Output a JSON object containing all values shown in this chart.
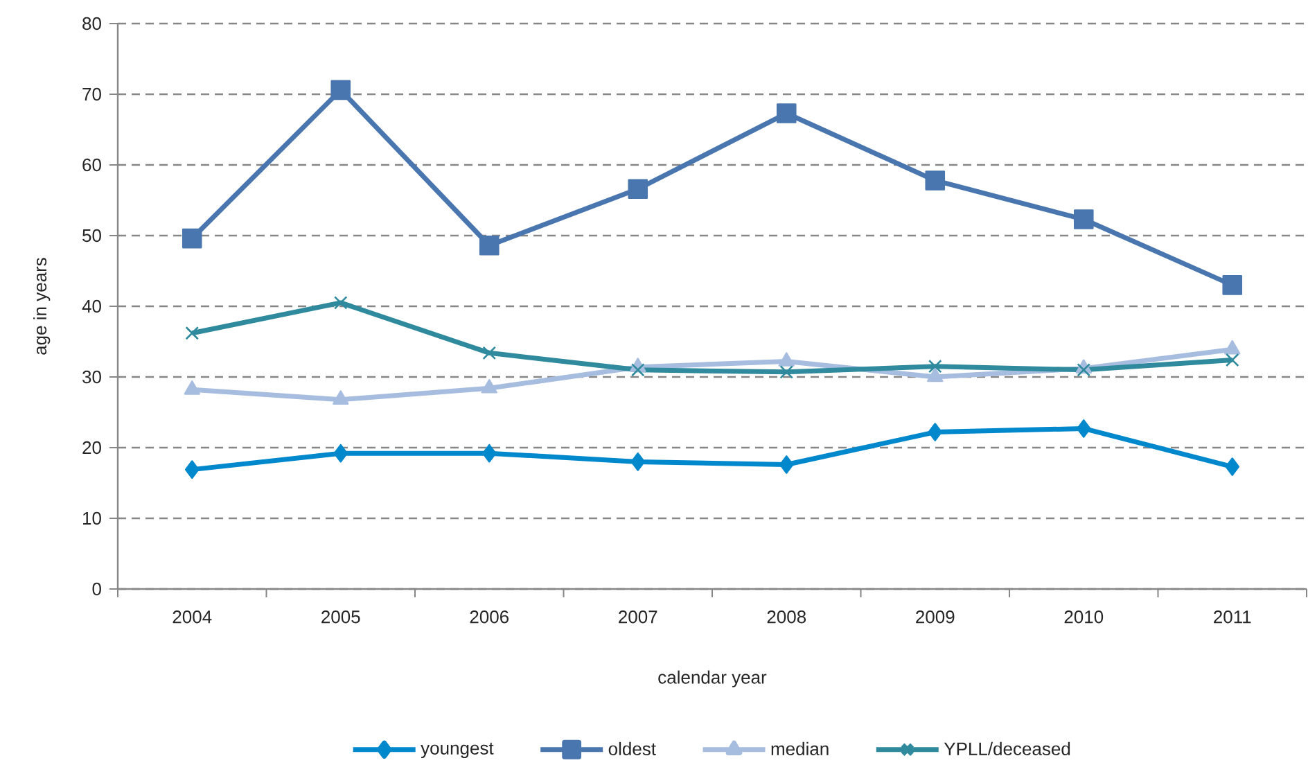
{
  "chart_data": {
    "type": "line",
    "xlabel": "calendar year",
    "ylabel": "age in years",
    "categories": [
      "2004",
      "2005",
      "2006",
      "2007",
      "2008",
      "2009",
      "2010",
      "2011"
    ],
    "series": [
      {
        "name": "youngest",
        "color": "#0088cc",
        "marker": "diamond",
        "values": [
          16.9,
          19.2,
          19.2,
          18.0,
          17.6,
          22.2,
          22.7,
          17.3
        ]
      },
      {
        "name": "oldest",
        "color": "#4a76b0",
        "marker": "square",
        "values": [
          49.6,
          70.6,
          48.6,
          56.6,
          67.3,
          57.8,
          52.3,
          43.0
        ]
      },
      {
        "name": "median",
        "color": "#a7bde0",
        "marker": "triangle",
        "values": [
          28.2,
          26.8,
          28.4,
          31.4,
          32.2,
          30.0,
          31.2,
          33.9
        ]
      },
      {
        "name": "YPLL/deceased",
        "color": "#2e8a9c",
        "marker": "cross",
        "values": [
          36.2,
          40.5,
          33.4,
          31.0,
          30.7,
          31.5,
          31.0,
          32.4
        ]
      }
    ],
    "ylim": [
      0,
      80
    ],
    "yticks": [
      0,
      10,
      20,
      30,
      40,
      50,
      60,
      70,
      80
    ],
    "grid": "y",
    "legend": "bottom",
    "line_style": "solid"
  }
}
